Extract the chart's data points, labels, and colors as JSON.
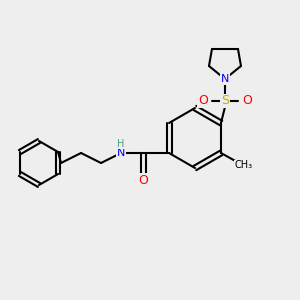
{
  "bg_color": "#eeeeee",
  "line_color": "#000000",
  "bond_width": 1.5,
  "atom_colors": {
    "N": "#0000ff",
    "O": "#ff0000",
    "S": "#ccaa00",
    "H": "#4a9a8a",
    "C": "#000000"
  }
}
